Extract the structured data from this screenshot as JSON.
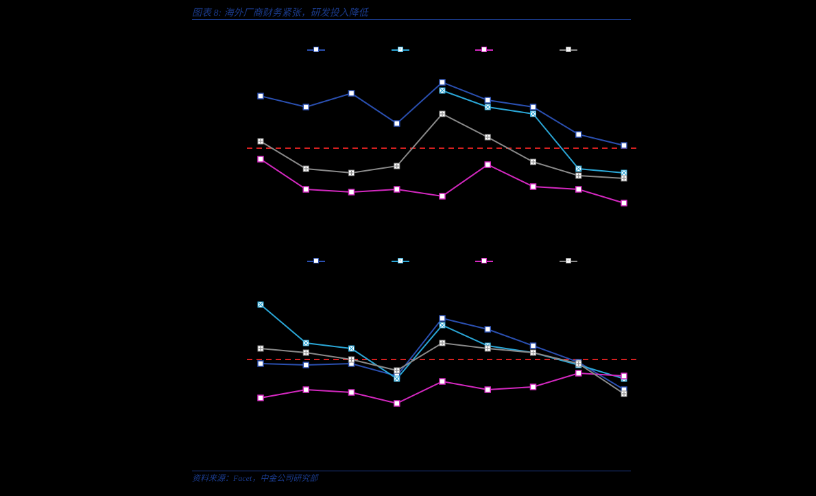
{
  "title": "图表 8: 海外厂商财务紧张，研发投入降低",
  "source": "资料来源：Facet，中金公司研究部",
  "colors": {
    "title": "#1a3a8a",
    "background": "#000000",
    "refline": "#d62020",
    "series": {
      "a": "#2a4fb0",
      "b": "#2aa6d6",
      "c": "#d428c0",
      "d": "#8a8a8a"
    }
  },
  "chart1": {
    "type": "line",
    "ylim": [
      -40,
      60
    ],
    "refline_y": 0,
    "x_count": 9,
    "series": [
      {
        "key": "a",
        "marker": "square",
        "values": [
          38,
          30,
          40,
          18,
          48,
          35,
          30,
          10,
          2
        ]
      },
      {
        "key": "b",
        "marker": "x",
        "values": [
          null,
          null,
          null,
          null,
          42,
          30,
          25,
          -15,
          -18
        ]
      },
      {
        "key": "c",
        "marker": "square",
        "values": [
          -8,
          -30,
          -32,
          -30,
          -35,
          -12,
          -28,
          -30,
          -40
        ]
      },
      {
        "key": "d",
        "marker": "plus",
        "values": [
          5,
          -15,
          -18,
          -13,
          25,
          8,
          -10,
          -20,
          -22
        ]
      }
    ]
  },
  "chart2": {
    "type": "line",
    "ylim": [
      -40,
      60
    ],
    "refline_y": 0,
    "x_count": 9,
    "series": [
      {
        "key": "a",
        "marker": "square",
        "values": [
          -3,
          -4,
          -3,
          -12,
          30,
          22,
          10,
          -2,
          -22
        ]
      },
      {
        "key": "b",
        "marker": "x",
        "values": [
          40,
          12,
          8,
          -14,
          25,
          10,
          5,
          -4,
          -14
        ]
      },
      {
        "key": "c",
        "marker": "square",
        "values": [
          -28,
          -22,
          -24,
          -32,
          -16,
          -22,
          -20,
          -10,
          -12
        ]
      },
      {
        "key": "d",
        "marker": "plus",
        "values": [
          8,
          5,
          0,
          -8,
          12,
          8,
          5,
          -3,
          -25
        ]
      }
    ]
  },
  "line_width": 2,
  "marker_size": 8,
  "refline_dash": "8,6",
  "refline_width": 2
}
